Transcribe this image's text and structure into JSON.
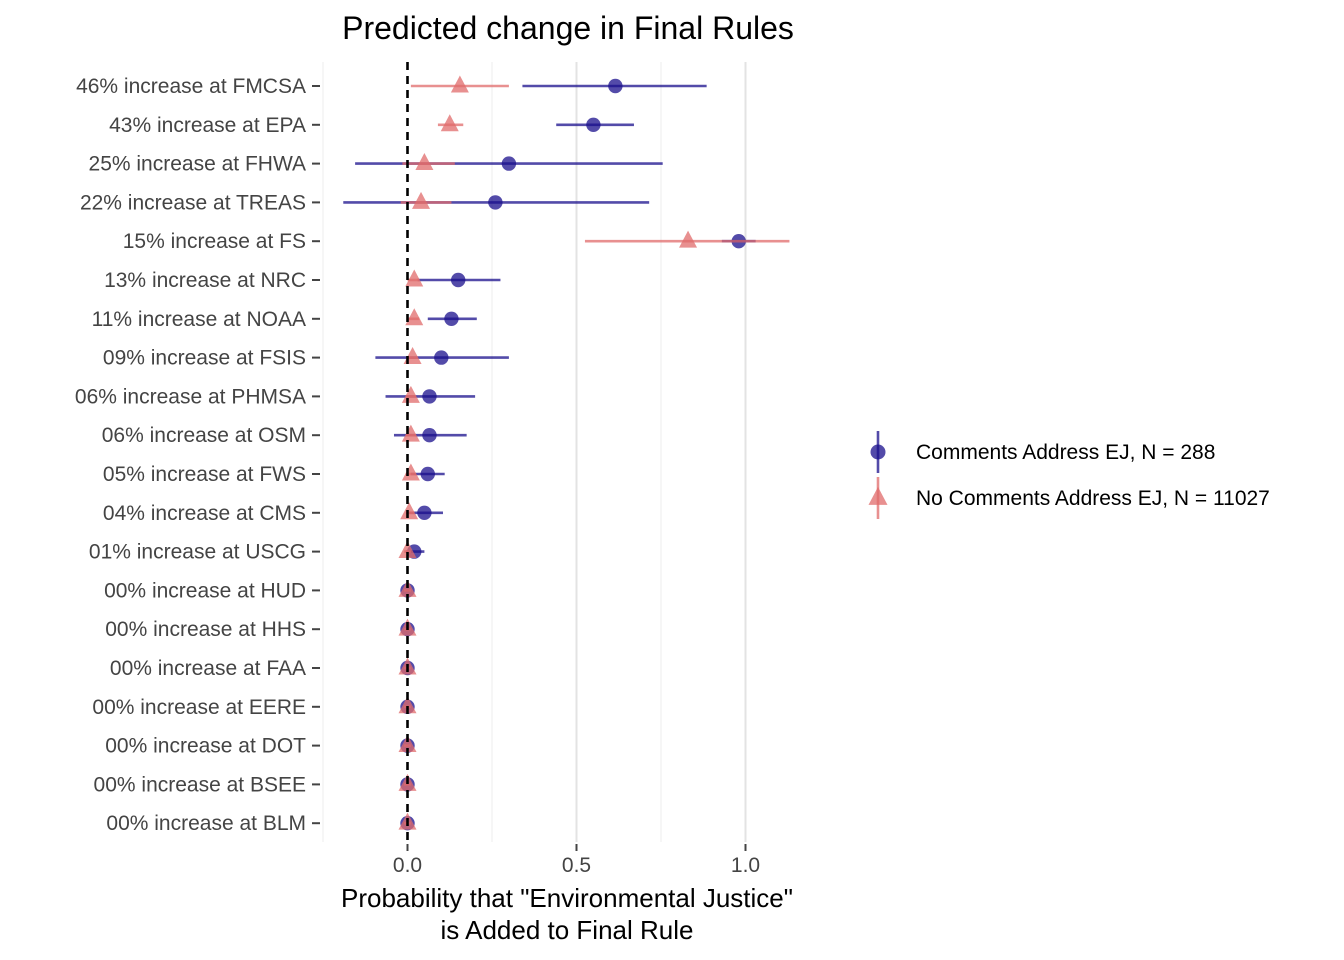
{
  "chart_data": {
    "type": "scatter",
    "title": "Predicted change in Final Rules",
    "xlabel_lines": [
      "Probability that \"Environmental Justice\"",
      "is Added to Final Rule"
    ],
    "ylabel": "",
    "xlim": [
      -0.25,
      1.25
    ],
    "xticks": [
      0.0,
      0.5,
      1.0
    ],
    "xtick_labels": [
      "0.0",
      "0.5",
      "1.0"
    ],
    "grid": true,
    "reference_line": 0.0,
    "legend_position": "right",
    "categories": [
      "46% increase at FMCSA",
      "43% increase at EPA",
      "25% increase at FHWA",
      "22% increase at TREAS",
      "15% increase at FS",
      "13% increase at NRC",
      "11% increase at NOAA",
      "09% increase at FSIS",
      "06% increase at PHMSA",
      "06% increase at OSM",
      "05% increase at FWS",
      "04% increase at CMS",
      "01% increase at USCG",
      "00% increase at HUD",
      "00% increase at HHS",
      "00% increase at FAA",
      "00% increase at EERE",
      "00% increase at DOT",
      "00% increase at BSEE",
      "00% increase at BLM"
    ],
    "series": [
      {
        "name": "Comments Address EJ, N = 288",
        "color": "#1a0f8c",
        "shape": "circle",
        "values": [
          0.615,
          0.55,
          0.3,
          0.26,
          0.98,
          0.15,
          0.13,
          0.1,
          0.065,
          0.065,
          0.06,
          0.05,
          0.02,
          0.0,
          0.0,
          0.0,
          0.0,
          0.0,
          0.0,
          0.0
        ],
        "lower": [
          0.34,
          0.44,
          -0.155,
          -0.19,
          0.93,
          0.03,
          0.06,
          -0.095,
          -0.065,
          -0.04,
          0.01,
          0.0,
          -0.005,
          -0.005,
          -0.005,
          -0.005,
          -0.005,
          -0.005,
          -0.005,
          -0.005
        ],
        "upper": [
          0.885,
          0.67,
          0.755,
          0.715,
          1.03,
          0.275,
          0.205,
          0.3,
          0.2,
          0.175,
          0.11,
          0.105,
          0.05,
          0.005,
          0.005,
          0.005,
          0.005,
          0.005,
          0.005,
          0.005
        ]
      },
      {
        "name": "No Comments Address EJ, N = 11027",
        "color": "#e06b6b",
        "shape": "triangle",
        "values": [
          0.155,
          0.125,
          0.05,
          0.04,
          0.83,
          0.02,
          0.02,
          0.015,
          0.01,
          0.01,
          0.01,
          0.005,
          0.0,
          0.0,
          0.0,
          0.0,
          0.0,
          0.0,
          0.0,
          0.0
        ],
        "lower": [
          0.01,
          0.09,
          -0.015,
          -0.02,
          0.525,
          0.0,
          0.0,
          0.0,
          -0.005,
          -0.005,
          -0.005,
          -0.005,
          -0.01,
          -0.01,
          -0.01,
          -0.01,
          -0.01,
          -0.01,
          -0.01,
          -0.01
        ],
        "upper": [
          0.3,
          0.165,
          0.14,
          0.13,
          1.13,
          0.035,
          0.035,
          0.03,
          0.025,
          0.025,
          0.025,
          0.02,
          0.01,
          0.01,
          0.01,
          0.01,
          0.01,
          0.01,
          0.01,
          0.01
        ]
      }
    ]
  }
}
